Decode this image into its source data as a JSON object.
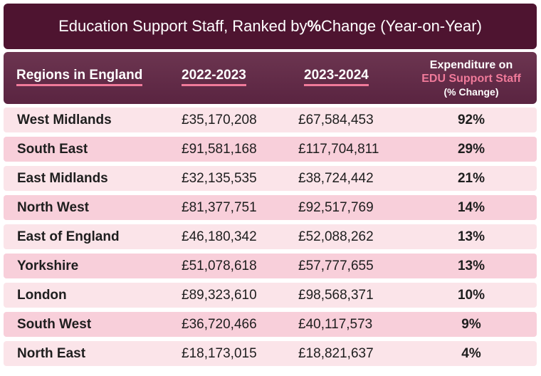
{
  "title": {
    "prefix": "Education Support Staff, Ranked by ",
    "bold": "%",
    "suffix": " Change (Year-on-Year)"
  },
  "header": {
    "region": "Regions in England",
    "year1": "2022-2023",
    "year2": "2023-2024",
    "expenditure_line1": "Expenditure on",
    "expenditure_line2": "EDU Support Staff",
    "expenditure_line3": "(% Change)"
  },
  "colors": {
    "title_bg": "#4e1430",
    "header_bg": "#5a2441",
    "accent_pink": "#f07a9a",
    "row_light": "#fbe4e9",
    "row_dark": "#f8cfda"
  },
  "chart_data": {
    "type": "table",
    "title": "Education Support Staff, Ranked by % Change (Year-on-Year)",
    "columns": [
      "Regions in England",
      "2022-2023",
      "2023-2024",
      "Expenditure on EDU Support Staff (% Change)"
    ],
    "rows": [
      {
        "region": "West Midlands",
        "y2022": "£35,170,208",
        "y2023": "£67,584,453",
        "change": "92%"
      },
      {
        "region": "South East",
        "y2022": "£91,581,168",
        "y2023": "£117,704,811",
        "change": "29%"
      },
      {
        "region": "East Midlands",
        "y2022": "£32,135,535",
        "y2023": "£38,724,442",
        "change": "21%"
      },
      {
        "region": "North West",
        "y2022": "£81,377,751",
        "y2023": "£92,517,769",
        "change": "14%"
      },
      {
        "region": "East of England",
        "y2022": "£46,180,342",
        "y2023": "£52,088,262",
        "change": "13%"
      },
      {
        "region": "Yorkshire",
        "y2022": "£51,078,618",
        "y2023": "£57,777,655",
        "change": "13%"
      },
      {
        "region": "London",
        "y2022": "£89,323,610",
        "y2023": "£98,568,371",
        "change": "10%"
      },
      {
        "region": "South West",
        "y2022": "£36,720,466",
        "y2023": "£40,117,573",
        "change": "9%"
      },
      {
        "region": "North East",
        "y2022": "£18,173,015",
        "y2023": "£18,821,637",
        "change": "4%"
      }
    ]
  }
}
